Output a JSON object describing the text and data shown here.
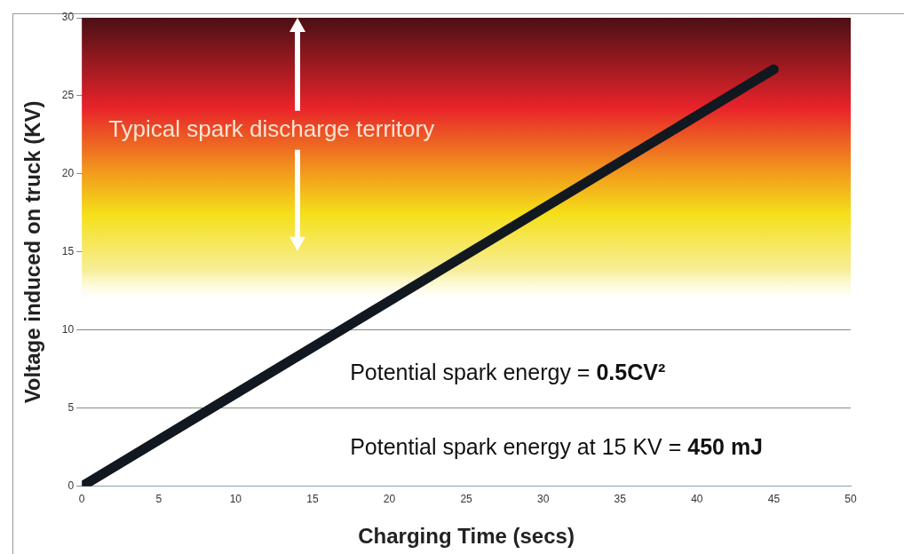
{
  "chart_data": {
    "type": "line",
    "xlabel": "Charging Time (secs)",
    "ylabel": "Voltage induced on truck (KV)",
    "x": [
      0,
      45
    ],
    "series": [
      {
        "color": "#111820",
        "values": [
          0,
          26.7
        ]
      }
    ],
    "xlim": [
      0,
      50
    ],
    "xticks": [
      0,
      5,
      10,
      15,
      20,
      25,
      30,
      35,
      40,
      45,
      50
    ],
    "ylim": [
      0,
      30
    ],
    "yticks": [
      0,
      5,
      10,
      15,
      20,
      25,
      30
    ],
    "grid": "y",
    "legend": false,
    "marker": "none",
    "line_style": "solid",
    "bands": [
      {
        "axis": "y",
        "from": 12,
        "to": 30,
        "label": "Typical spark discharge territory",
        "color": "#e8232a"
      }
    ],
    "annotations": [
      "Potential spark energy = 0.5CV²",
      "Potential spark energy at 15 KV = 450 mJ"
    ]
  }
}
